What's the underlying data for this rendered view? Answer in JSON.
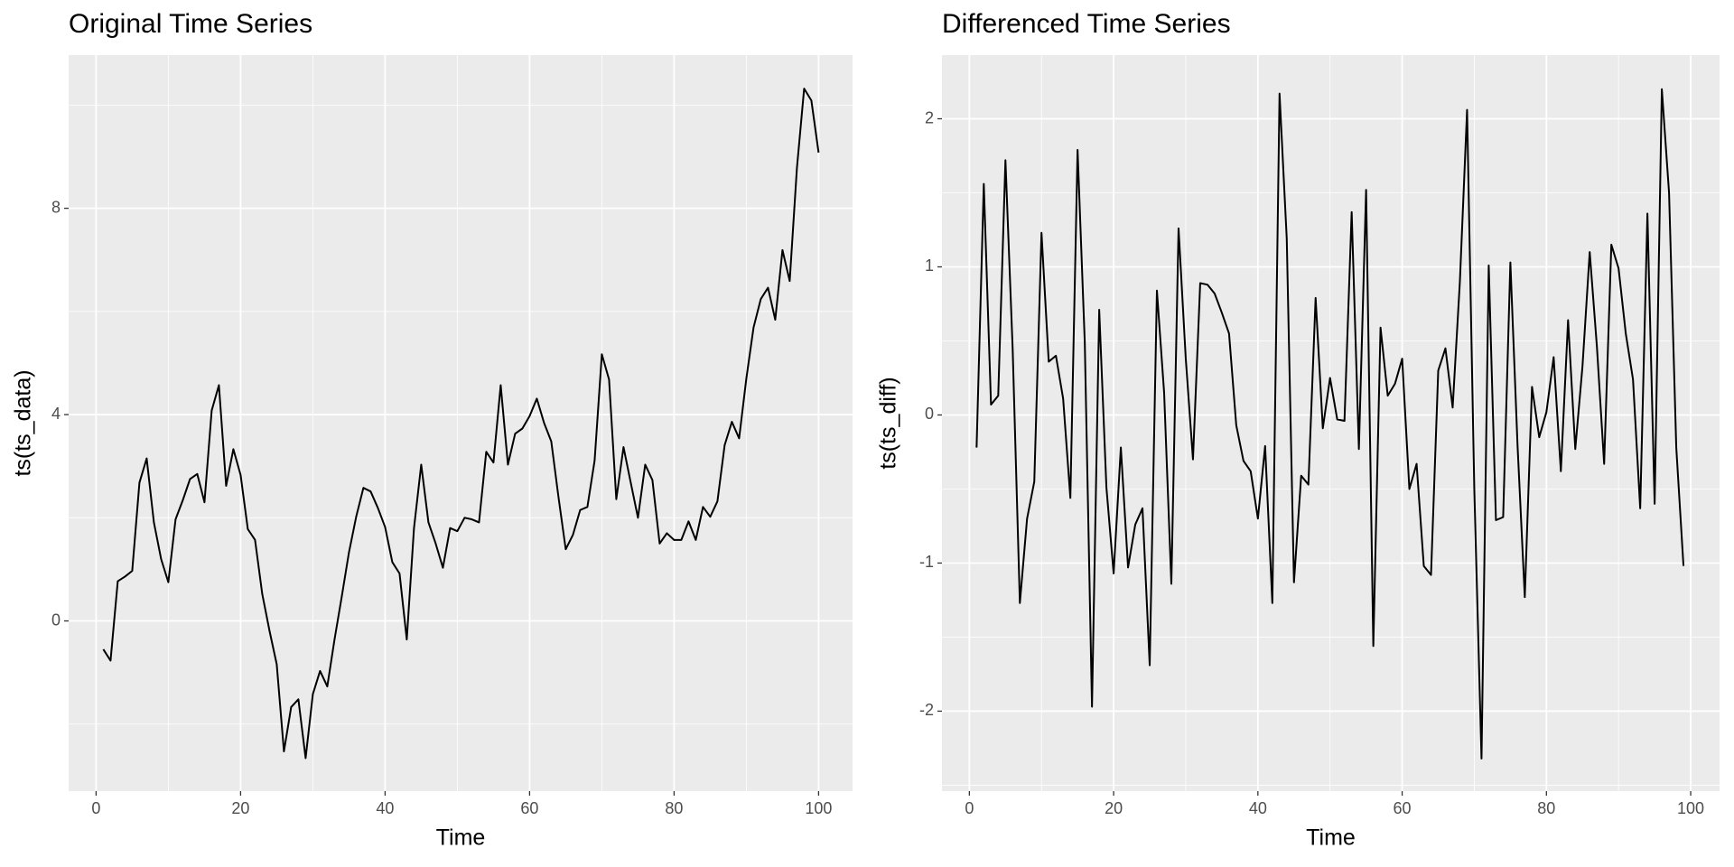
{
  "chart_data": [
    {
      "type": "line",
      "title": "Original Time Series",
      "x_label": "Time",
      "y_label": "ts(ts_data)",
      "color": "#000000",
      "grid": true,
      "x": [
        1,
        2,
        3,
        4,
        5,
        6,
        7,
        8,
        9,
        10,
        11,
        12,
        13,
        14,
        15,
        16,
        17,
        18,
        19,
        20,
        21,
        22,
        23,
        24,
        25,
        26,
        27,
        28,
        29,
        30,
        31,
        32,
        33,
        34,
        35,
        36,
        37,
        38,
        39,
        40,
        41,
        42,
        43,
        44,
        45,
        46,
        47,
        48,
        49,
        50,
        51,
        52,
        53,
        54,
        55,
        56,
        57,
        58,
        59,
        60,
        61,
        62,
        63,
        64,
        65,
        66,
        67,
        68,
        69,
        70,
        71,
        72,
        73,
        74,
        75,
        76,
        77,
        78,
        79,
        80,
        81,
        82,
        83,
        84,
        85,
        86,
        87,
        88,
        89,
        90,
        91,
        92,
        93,
        94,
        95,
        96,
        97,
        98,
        99,
        100
      ],
      "values": [
        -0.55,
        -0.77,
        0.77,
        0.86,
        0.97,
        2.68,
        3.15,
        1.91,
        1.2,
        0.75,
        1.97,
        2.34,
        2.75,
        2.85,
        2.3,
        4.08,
        4.57,
        2.62,
        3.33,
        2.83,
        1.78,
        1.57,
        0.52,
        -0.19,
        -0.84,
        -2.53,
        -1.67,
        -1.52,
        -2.66,
        -1.42,
        -0.97,
        -1.27,
        -0.36,
        0.47,
        1.33,
        2.02,
        2.58,
        2.51,
        2.19,
        1.82,
        1.14,
        0.92,
        -0.36,
        1.8,
        3.03,
        1.91,
        1.5,
        1.03,
        1.8,
        1.74,
        2.0,
        1.97,
        1.91,
        3.28,
        3.07,
        4.57,
        3.03,
        3.63,
        3.73,
        3.97,
        4.31,
        3.84,
        3.48,
        2.4,
        1.39,
        1.67,
        2.15,
        2.21,
        3.11,
        5.17,
        4.68,
        2.36,
        3.37,
        2.68,
        2.0,
        3.03,
        2.73,
        1.5,
        1.7,
        1.57,
        1.57,
        1.93,
        1.57,
        2.21,
        2.02,
        2.32,
        3.41,
        3.86,
        3.54,
        4.7,
        5.69,
        6.24,
        6.46,
        5.84,
        7.19,
        6.59,
        8.78,
        10.32,
        10.09,
        9.08
      ],
      "xlim": [
        -3.8,
        104.7
      ],
      "xticks": [
        0,
        20,
        40,
        60,
        80,
        100
      ],
      "ylim": [
        -3.3,
        10.97
      ],
      "yticks": [
        0,
        4,
        8
      ]
    },
    {
      "type": "line",
      "title": "Differenced Time Series",
      "x_label": "Time",
      "y_label": "ts(ts_diff)",
      "color": "#000000",
      "grid": true,
      "x": [
        1,
        2,
        3,
        4,
        5,
        6,
        7,
        8,
        9,
        10,
        11,
        12,
        13,
        14,
        15,
        16,
        17,
        18,
        19,
        20,
        21,
        22,
        23,
        24,
        25,
        26,
        27,
        28,
        29,
        30,
        31,
        32,
        33,
        34,
        35,
        36,
        37,
        38,
        39,
        40,
        41,
        42,
        43,
        44,
        45,
        46,
        47,
        48,
        49,
        50,
        51,
        52,
        53,
        54,
        55,
        56,
        57,
        58,
        59,
        60,
        61,
        62,
        63,
        64,
        65,
        66,
        67,
        68,
        69,
        70,
        71,
        72,
        73,
        74,
        75,
        76,
        77,
        78,
        79,
        80,
        81,
        82,
        83,
        84,
        85,
        86,
        87,
        88,
        89,
        90,
        91,
        92,
        93,
        94,
        95,
        96,
        97,
        98,
        99
      ],
      "values": [
        -0.22,
        1.56,
        0.07,
        0.13,
        1.72,
        0.45,
        -1.27,
        -0.7,
        -0.45,
        1.23,
        0.36,
        0.4,
        0.11,
        -0.56,
        1.79,
        0.49,
        -1.97,
        0.71,
        -0.49,
        -1.07,
        -0.22,
        -1.03,
        -0.74,
        -0.63,
        -1.69,
        0.84,
        0.15,
        -1.14,
        1.26,
        0.38,
        -0.3,
        0.89,
        0.88,
        0.82,
        0.69,
        0.55,
        -0.07,
        -0.31,
        -0.38,
        -0.7,
        -0.21,
        -1.27,
        2.17,
        1.19,
        -1.13,
        -0.41,
        -0.47,
        0.79,
        -0.09,
        0.25,
        -0.03,
        -0.04,
        1.37,
        -0.23,
        1.52,
        -1.56,
        0.59,
        0.13,
        0.21,
        0.38,
        -0.5,
        -0.33,
        -1.02,
        -1.08,
        0.3,
        0.45,
        0.05,
        0.9,
        2.06,
        -0.5,
        -2.32,
        1.01,
        -0.71,
        -0.69,
        1.03,
        -0.21,
        -1.23,
        0.19,
        -0.15,
        0.02,
        0.39,
        -0.38,
        0.64,
        -0.23,
        0.33,
        1.1,
        0.46,
        -0.33,
        1.15,
        0.99,
        0.55,
        0.24,
        -0.63,
        1.36,
        -0.6,
        2.2,
        1.5,
        -0.22,
        -1.02
      ],
      "xlim": [
        -3.8,
        104.0
      ],
      "xticks": [
        0,
        20,
        40,
        60,
        80,
        100
      ],
      "ylim": [
        -2.54,
        2.43
      ],
      "yticks": [
        -2,
        -1,
        0,
        1,
        2
      ]
    }
  ]
}
